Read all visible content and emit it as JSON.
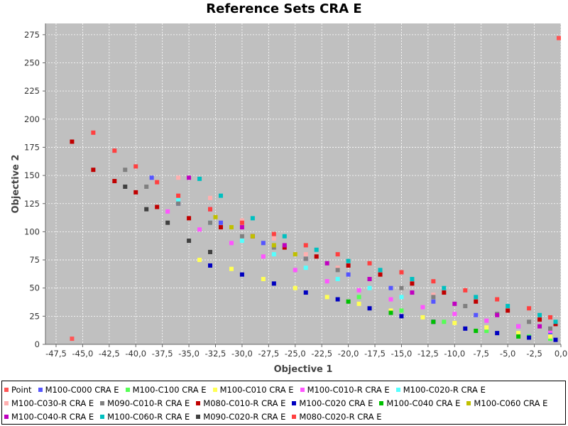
{
  "chart_data": {
    "type": "scatter",
    "title": "Reference Sets CRA E",
    "xlabel": "Objective 1",
    "ylabel": "Objective 2",
    "xlim": [
      -48.5,
      0
    ],
    "ylim": [
      0,
      285
    ],
    "x_ticks": [
      "-47,5",
      "-45,0",
      "-42,5",
      "-40,0",
      "-37,5",
      "-35,0",
      "-32,5",
      "-30,0",
      "-27,5",
      "-25,0",
      "-22,5",
      "-20,0",
      "-17,5",
      "-15,0",
      "-12,5",
      "-10,0",
      "-7,5",
      "-5,0",
      "-2,5",
      "0,0"
    ],
    "x_tick_values": [
      -47.5,
      -45,
      -42.5,
      -40,
      -37.5,
      -35,
      -32.5,
      -30,
      -27.5,
      -25,
      -22.5,
      -20,
      -17.5,
      -15,
      -12.5,
      -10,
      -7.5,
      -5,
      -2.5,
      0
    ],
    "y_ticks": [
      "0",
      "25",
      "50",
      "75",
      "100",
      "125",
      "150",
      "175",
      "200",
      "225",
      "250",
      "275"
    ],
    "y_tick_values": [
      0,
      25,
      50,
      75,
      100,
      125,
      150,
      175,
      200,
      225,
      250,
      275
    ],
    "grid": true,
    "plot_background": "#c0c0c0",
    "legend_position": "bottom",
    "series": [
      {
        "name": "Point",
        "color": "#ff5555",
        "points": [
          [
            -46,
            5
          ],
          [
            -0.2,
            272
          ]
        ]
      },
      {
        "name": "M100-C000 CRA E",
        "color": "#5555ff",
        "points": [
          [
            -38.5,
            148
          ],
          [
            -36,
            125
          ],
          [
            -32,
            108
          ],
          [
            -28,
            90
          ],
          [
            -24,
            76
          ],
          [
            -20,
            62
          ],
          [
            -16,
            50
          ],
          [
            -12,
            38
          ],
          [
            -8,
            26
          ],
          [
            -4,
            16
          ],
          [
            -1,
            10
          ]
        ]
      },
      {
        "name": "M100-C100 CRA E",
        "color": "#55ff55",
        "points": [
          [
            -19,
            42
          ],
          [
            -15,
            30
          ],
          [
            -11,
            20
          ],
          [
            -7,
            12
          ],
          [
            -3,
            7
          ],
          [
            -1,
            5
          ]
        ]
      },
      {
        "name": "M100-C010 CRA E",
        "color": "#ffff55",
        "points": [
          [
            -34,
            75
          ],
          [
            -31,
            67
          ],
          [
            -28,
            58
          ],
          [
            -25,
            50
          ],
          [
            -22,
            42
          ],
          [
            -19,
            36
          ],
          [
            -16,
            30
          ],
          [
            -13,
            24
          ],
          [
            -10,
            19
          ],
          [
            -7,
            15
          ],
          [
            -4,
            10
          ],
          [
            -1,
            7
          ]
        ]
      },
      {
        "name": "M100-C010-R CRA E",
        "color": "#ff55ff",
        "points": [
          [
            -37,
            118
          ],
          [
            -34,
            102
          ],
          [
            -31,
            90
          ],
          [
            -28,
            78
          ],
          [
            -25,
            66
          ],
          [
            -22,
            56
          ],
          [
            -19,
            48
          ],
          [
            -16,
            40
          ],
          [
            -13,
            33
          ],
          [
            -10,
            27
          ],
          [
            -7,
            21
          ],
          [
            -4,
            16
          ],
          [
            -1,
            12
          ]
        ]
      },
      {
        "name": "M100-C020-R CRA E",
        "color": "#55ffff",
        "points": [
          [
            -36,
            128
          ],
          [
            -33,
            108
          ],
          [
            -30,
            92
          ],
          [
            -27,
            80
          ],
          [
            -24,
            68
          ],
          [
            -21,
            58
          ],
          [
            -18,
            50
          ],
          [
            -15,
            42
          ]
        ]
      },
      {
        "name": "M100-C030-R CRA E",
        "color": "#ffafaf",
        "points": [
          [
            -36,
            148
          ],
          [
            -33,
            130
          ],
          [
            -30,
            110
          ],
          [
            -27,
            94
          ],
          [
            -24,
            80
          ],
          [
            -21,
            68
          ],
          [
            -18,
            58
          ],
          [
            -15,
            50
          ],
          [
            -12,
            44
          ]
        ]
      },
      {
        "name": "M090-C010-R CRA E",
        "color": "#808080",
        "points": [
          [
            -41,
            155
          ],
          [
            -39,
            140
          ],
          [
            -36,
            125
          ],
          [
            -33,
            108
          ],
          [
            -30,
            96
          ],
          [
            -27,
            86
          ],
          [
            -24,
            76
          ],
          [
            -21,
            66
          ],
          [
            -18,
            58
          ],
          [
            -15,
            50
          ],
          [
            -12,
            42
          ],
          [
            -9,
            34
          ],
          [
            -6,
            27
          ],
          [
            -3,
            20
          ],
          [
            -1,
            14
          ]
        ]
      },
      {
        "name": "M080-C010-R CRA E",
        "color": "#c00000",
        "points": [
          [
            -46,
            180
          ],
          [
            -44,
            155
          ],
          [
            -42,
            145
          ],
          [
            -40,
            135
          ],
          [
            -38,
            122
          ],
          [
            -35,
            112
          ],
          [
            -32,
            104
          ],
          [
            -29,
            96
          ],
          [
            -26,
            86
          ],
          [
            -23,
            78
          ],
          [
            -20,
            70
          ],
          [
            -17,
            62
          ],
          [
            -14,
            54
          ],
          [
            -11,
            46
          ],
          [
            -8,
            38
          ],
          [
            -5,
            30
          ],
          [
            -2,
            22
          ],
          [
            -0.5,
            18
          ]
        ]
      },
      {
        "name": "M100-C020 CRA E",
        "color": "#0000c0",
        "points": [
          [
            -33,
            70
          ],
          [
            -30,
            62
          ],
          [
            -27,
            54
          ],
          [
            -24,
            46
          ],
          [
            -21,
            40
          ],
          [
            -18,
            32
          ],
          [
            -15,
            25
          ],
          [
            -12,
            20
          ],
          [
            -9,
            14
          ],
          [
            -6,
            10
          ],
          [
            -3,
            6
          ],
          [
            -0.5,
            4
          ]
        ]
      },
      {
        "name": "M100-C040 CRA E",
        "color": "#00c000",
        "points": [
          [
            -20,
            38
          ],
          [
            -16,
            28
          ],
          [
            -12,
            20
          ],
          [
            -8,
            12
          ],
          [
            -4,
            7
          ]
        ]
      },
      {
        "name": "M100-C060 CRA E",
        "color": "#c0c000",
        "points": [
          [
            -32.5,
            113
          ],
          [
            -31,
            104
          ],
          [
            -29,
            96
          ],
          [
            -27,
            88
          ],
          [
            -25,
            80
          ]
        ]
      },
      {
        "name": "M100-C040-R CRA E",
        "color": "#c000c0",
        "points": [
          [
            -35,
            148
          ],
          [
            -33,
            120
          ],
          [
            -30,
            104
          ],
          [
            -26,
            88
          ],
          [
            -22,
            72
          ],
          [
            -18,
            58
          ],
          [
            -14,
            46
          ],
          [
            -10,
            36
          ],
          [
            -6,
            26
          ],
          [
            -2,
            16
          ]
        ]
      },
      {
        "name": "M100-C060-R CRA E",
        "color": "#00c0c0",
        "points": [
          [
            -34,
            147
          ],
          [
            -32,
            132
          ],
          [
            -29,
            112
          ],
          [
            -26,
            96
          ],
          [
            -23,
            84
          ],
          [
            -20,
            74
          ],
          [
            -17,
            66
          ],
          [
            -14,
            58
          ],
          [
            -11,
            50
          ],
          [
            -8,
            42
          ],
          [
            -5,
            34
          ],
          [
            -2,
            26
          ],
          [
            -0.5,
            20
          ]
        ]
      },
      {
        "name": "M090-C020-R CRA E",
        "color": "#404040",
        "points": [
          [
            -41,
            140
          ],
          [
            -39,
            120
          ],
          [
            -37,
            108
          ],
          [
            -35,
            92
          ],
          [
            -33,
            82
          ]
        ]
      },
      {
        "name": "M080-C020-R CRA E",
        "color": "#ff4040",
        "points": [
          [
            -44,
            188
          ],
          [
            -42,
            172
          ],
          [
            -40,
            158
          ],
          [
            -38,
            144
          ],
          [
            -36,
            132
          ],
          [
            -33,
            120
          ],
          [
            -30,
            108
          ],
          [
            -27,
            98
          ],
          [
            -24,
            88
          ],
          [
            -21,
            80
          ],
          [
            -18,
            72
          ],
          [
            -15,
            64
          ],
          [
            -12,
            56
          ],
          [
            -9,
            48
          ],
          [
            -6,
            40
          ],
          [
            -3,
            32
          ],
          [
            -1,
            24
          ]
        ]
      }
    ]
  }
}
